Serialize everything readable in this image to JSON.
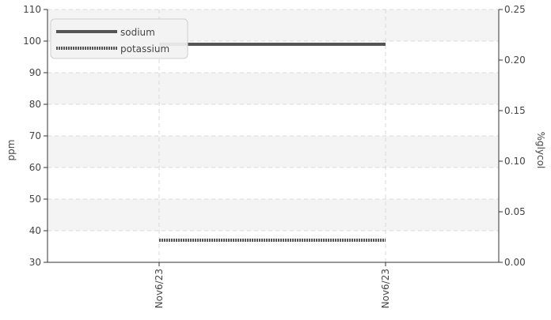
{
  "chart_data": {
    "type": "line",
    "title": "",
    "x_categories": [
      "Nov6/23",
      "Nov6/23"
    ],
    "left_axis": {
      "label": "ppm",
      "ylim": [
        30,
        110
      ],
      "ticks": [
        30,
        40,
        50,
        60,
        70,
        80,
        90,
        100,
        110
      ]
    },
    "right_axis": {
      "label": "%glycol",
      "ylim": [
        0,
        0.25
      ],
      "ticks": [
        "0.00",
        "0.05",
        "0.10",
        "0.15",
        "0.20",
        "0.25"
      ]
    },
    "grid": true,
    "legend_position": "top-left",
    "series": [
      {
        "name": "sodium",
        "axis": "left",
        "style": "solid",
        "color": "#555555",
        "values": [
          99,
          99
        ]
      },
      {
        "name": "potassium",
        "axis": "left",
        "style": "dotted",
        "color": "#555555",
        "values": [
          37,
          37
        ]
      }
    ]
  }
}
